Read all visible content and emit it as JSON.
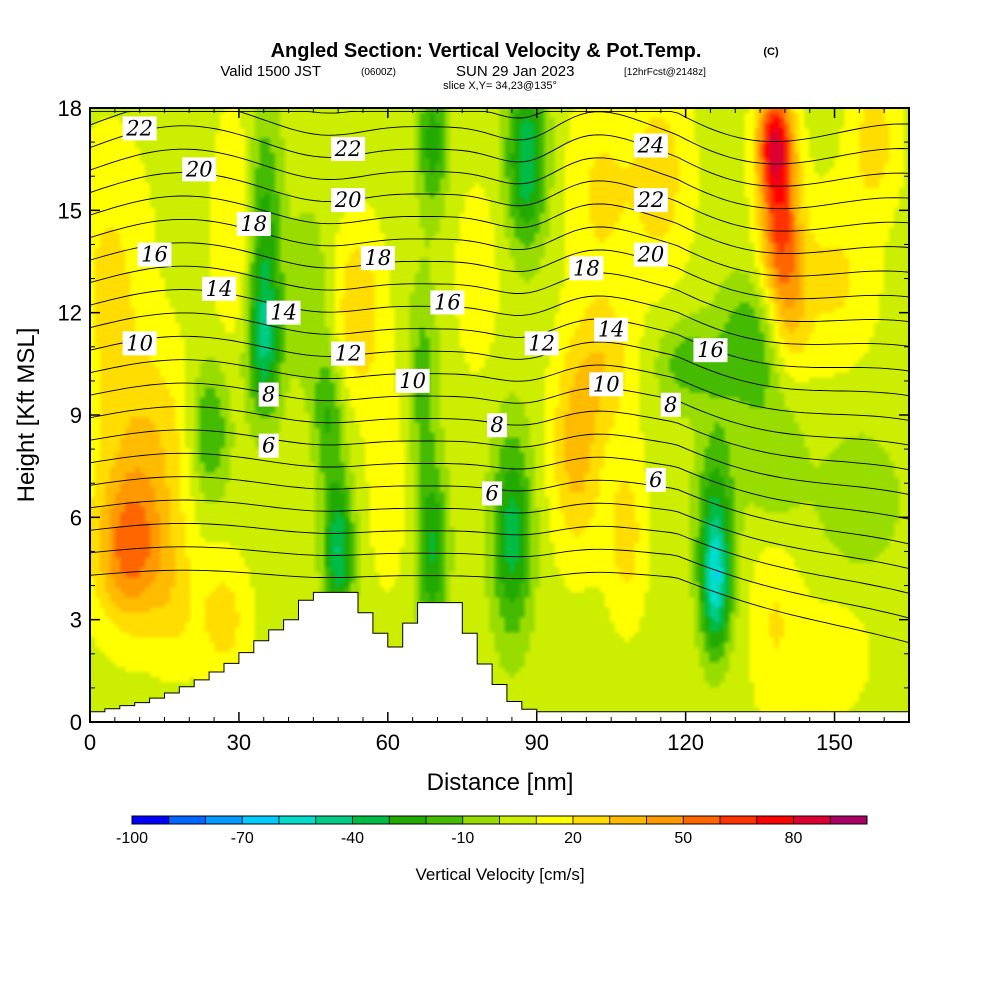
{
  "title": {
    "main": "Angled Section: Vertical Velocity & Pot.Temp.",
    "copyright": "(C)",
    "valid_a": "Valid 1500 JST",
    "valid_z": "(0600Z)",
    "valid_b": "SUN 29 Jan 2023",
    "fcst": "[12hrFcst@2148z]",
    "slice": "slice X,Y= 34,23@135°"
  },
  "chart_data": {
    "type": "heatmap",
    "xlabel": "Distance [nm]",
    "ylabel": "Height [Kft MSL]",
    "xlim": [
      0,
      165
    ],
    "ylim": [
      0,
      18
    ],
    "x_ticks": [
      0,
      30,
      60,
      90,
      120,
      150
    ],
    "y_ticks": [
      0,
      3,
      6,
      9,
      12,
      15,
      18
    ],
    "colorbar": {
      "label": "Vertical Velocity [cm/s]",
      "min": -100,
      "max": 95,
      "step": 10,
      "tick_labels": [
        -100,
        -70,
        -40,
        -10,
        20,
        50,
        80
      ],
      "colors": [
        "#0000ff",
        "#0066ff",
        "#0099ff",
        "#00ccff",
        "#00ddcc",
        "#00cc88",
        "#00bb44",
        "#22aa00",
        "#44bb00",
        "#99dd00",
        "#ccee00",
        "#ffff00",
        "#ffdd00",
        "#ffbb00",
        "#ff9900",
        "#ff6600",
        "#ff3300",
        "#ff0000",
        "#dd0033",
        "#aa0066"
      ]
    },
    "vertical_velocity_regions": [
      {
        "x": 8,
        "y": 5,
        "sx": 7,
        "sy": 2.2,
        "value": 50
      },
      {
        "x": 12,
        "y": 8,
        "sx": 10,
        "sy": 3,
        "value": 28
      },
      {
        "x": 4,
        "y": 13,
        "sx": 8,
        "sy": 4,
        "value": 22
      },
      {
        "x": 30,
        "y": 14.5,
        "sx": 5,
        "sy": 3.5,
        "value": 22
      },
      {
        "x": 35,
        "y": 14,
        "sx": 3.5,
        "sy": 4,
        "value": -30
      },
      {
        "x": 35,
        "y": 11,
        "sx": 3.5,
        "sy": 2,
        "value": -25
      },
      {
        "x": 24,
        "y": 8.5,
        "sx": 4,
        "sy": 2,
        "value": -25
      },
      {
        "x": 27,
        "y": 3,
        "sx": 5,
        "sy": 1.8,
        "value": 25
      },
      {
        "x": 17,
        "y": 3.5,
        "sx": 5,
        "sy": 2,
        "value": 20
      },
      {
        "x": 50,
        "y": 5,
        "sx": 3,
        "sy": 2.2,
        "value": -40
      },
      {
        "x": 48,
        "y": 9,
        "sx": 3,
        "sy": 2,
        "value": -20
      },
      {
        "x": 54,
        "y": 12,
        "sx": 5,
        "sy": 2.5,
        "value": 30
      },
      {
        "x": 44,
        "y": 12.5,
        "sx": 4,
        "sy": 2.5,
        "value": -10
      },
      {
        "x": 60,
        "y": 7,
        "sx": 4,
        "sy": 3,
        "value": 18
      },
      {
        "x": 69,
        "y": 5,
        "sx": 3,
        "sy": 2.5,
        "value": -30
      },
      {
        "x": 67,
        "y": 10,
        "sx": 3,
        "sy": 3,
        "value": -15
      },
      {
        "x": 69,
        "y": 17,
        "sx": 3,
        "sy": 2,
        "value": -25
      },
      {
        "x": 85,
        "y": 5.5,
        "sx": 4,
        "sy": 3,
        "value": -35
      },
      {
        "x": 88,
        "y": 16.5,
        "sx": 4,
        "sy": 2.5,
        "value": -40
      },
      {
        "x": 78,
        "y": 13,
        "sx": 4,
        "sy": 2.5,
        "value": 20
      },
      {
        "x": 98,
        "y": 8,
        "sx": 5,
        "sy": 3,
        "value": 35
      },
      {
        "x": 104,
        "y": 10.5,
        "sx": 6,
        "sy": 2,
        "value": 25
      },
      {
        "x": 108,
        "y": 5.5,
        "sx": 4,
        "sy": 2.5,
        "value": 25
      },
      {
        "x": 103,
        "y": 15.5,
        "sx": 7,
        "sy": 3,
        "value": 22
      },
      {
        "x": 115,
        "y": 16,
        "sx": 6,
        "sy": 3,
        "value": 25
      },
      {
        "x": 126,
        "y": 4,
        "sx": 3,
        "sy": 2,
        "value": -50
      },
      {
        "x": 126,
        "y": 6.5,
        "sx": 4,
        "sy": 2.5,
        "value": -20
      },
      {
        "x": 133,
        "y": 11,
        "sx": 7,
        "sy": 2,
        "value": -20
      },
      {
        "x": 120,
        "y": 10.5,
        "sx": 6,
        "sy": 1.3,
        "value": -15
      },
      {
        "x": 138,
        "y": 7.5,
        "sx": 6,
        "sy": 2,
        "value": -10
      },
      {
        "x": 138,
        "y": 3,
        "sx": 5,
        "sy": 3,
        "value": 20
      },
      {
        "x": 138,
        "y": 17,
        "sx": 3.5,
        "sy": 1.6,
        "value": 75
      },
      {
        "x": 139,
        "y": 14.5,
        "sx": 4,
        "sy": 2.2,
        "value": 55
      },
      {
        "x": 141,
        "y": 12,
        "sx": 4,
        "sy": 2,
        "value": 30
      },
      {
        "x": 150,
        "y": 13,
        "sx": 8,
        "sy": 2.5,
        "value": 22
      },
      {
        "x": 158,
        "y": 17,
        "sx": 5,
        "sy": 2,
        "value": 25
      },
      {
        "x": 155,
        "y": 6.5,
        "sx": 8,
        "sy": 2,
        "value": -10
      },
      {
        "x": 150,
        "y": 2,
        "sx": 8,
        "sy": 2,
        "value": 15
      }
    ],
    "terrain_height_kft": [
      [
        0,
        0.3
      ],
      [
        10,
        0.6
      ],
      [
        16,
        0.9
      ],
      [
        22,
        1.3
      ],
      [
        28,
        1.8
      ],
      [
        34,
        2.5
      ],
      [
        40,
        3.1
      ],
      [
        43,
        3.8
      ],
      [
        51,
        3.8
      ],
      [
        54,
        3.2
      ],
      [
        57,
        2.6
      ],
      [
        60,
        2.2
      ],
      [
        63,
        2.9
      ],
      [
        66,
        3.5
      ],
      [
        72,
        3.5
      ],
      [
        75,
        2.6
      ],
      [
        78,
        1.7
      ],
      [
        81,
        1.1
      ],
      [
        84,
        0.6
      ],
      [
        88,
        0.3
      ],
      [
        165,
        0.3
      ]
    ],
    "potential_temperature_contours": {
      "levels": [
        5,
        6,
        7,
        8,
        9,
        10,
        11,
        12,
        13,
        14,
        15,
        16,
        17,
        18,
        19,
        20,
        21,
        22,
        23,
        24,
        25,
        26
      ],
      "labels": [
        {
          "x": 10,
          "y": 17.4,
          "text": "22"
        },
        {
          "x": 22,
          "y": 16.2,
          "text": "20"
        },
        {
          "x": 33,
          "y": 14.6,
          "text": "18"
        },
        {
          "x": 13,
          "y": 13.7,
          "text": "16"
        },
        {
          "x": 26,
          "y": 12.7,
          "text": "14"
        },
        {
          "x": 39,
          "y": 12,
          "text": "14"
        },
        {
          "x": 10,
          "y": 11.1,
          "text": "10"
        },
        {
          "x": 36,
          "y": 9.6,
          "text": "8"
        },
        {
          "x": 36,
          "y": 8.1,
          "text": "6"
        },
        {
          "x": 52,
          "y": 16.8,
          "text": "22"
        },
        {
          "x": 52,
          "y": 15.3,
          "text": "20"
        },
        {
          "x": 58,
          "y": 13.6,
          "text": "18"
        },
        {
          "x": 72,
          "y": 12.3,
          "text": "16"
        },
        {
          "x": 52,
          "y": 10.8,
          "text": "12"
        },
        {
          "x": 65,
          "y": 10,
          "text": "10"
        },
        {
          "x": 82,
          "y": 8.7,
          "text": "8"
        },
        {
          "x": 81,
          "y": 6.7,
          "text": "6"
        },
        {
          "x": 113,
          "y": 16.9,
          "text": "24"
        },
        {
          "x": 113,
          "y": 15.3,
          "text": "22"
        },
        {
          "x": 113,
          "y": 13.7,
          "text": "20"
        },
        {
          "x": 100,
          "y": 13.3,
          "text": "18"
        },
        {
          "x": 105,
          "y": 11.5,
          "text": "14"
        },
        {
          "x": 91,
          "y": 11.1,
          "text": "12"
        },
        {
          "x": 125,
          "y": 10.9,
          "text": "16"
        },
        {
          "x": 104,
          "y": 9.9,
          "text": "10"
        },
        {
          "x": 117,
          "y": 9.3,
          "text": "8"
        },
        {
          "x": 114,
          "y": 7.1,
          "text": "6"
        }
      ]
    }
  }
}
